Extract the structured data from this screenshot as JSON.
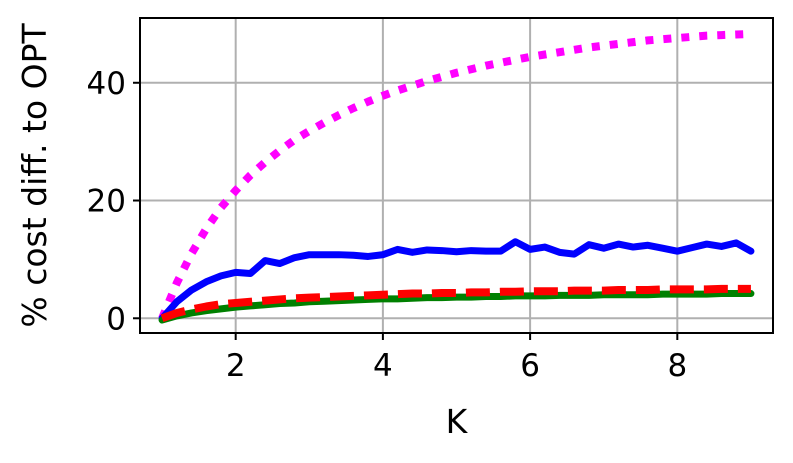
{
  "chart_data": {
    "type": "line",
    "xlabel": "K",
    "ylabel": "% cost diff. to OPT",
    "xlim": [
      0.7,
      9.3
    ],
    "ylim": [
      -2.5,
      51
    ],
    "xticks": [
      2,
      4,
      6,
      8
    ],
    "yticks": [
      0,
      20,
      40
    ],
    "xtick_labels": [
      "2",
      "4",
      "6",
      "8"
    ],
    "ytick_labels": [
      "0",
      "20",
      "40"
    ],
    "grid": true,
    "legend": "none",
    "series": [
      {
        "color": "#ff00ff",
        "style": "dotted",
        "x": [
          1.0,
          1.2,
          1.4,
          1.6,
          1.8,
          2.0,
          2.2,
          2.4,
          2.6,
          2.8,
          3.0,
          3.2,
          3.4,
          3.6,
          3.8,
          4.0,
          4.2,
          4.4,
          4.6,
          4.8,
          5.0,
          5.2,
          5.4,
          5.6,
          5.8,
          6.0,
          6.2,
          6.4,
          6.6,
          6.8,
          7.0,
          7.2,
          7.4,
          7.6,
          7.8,
          8.0,
          8.2,
          8.4,
          8.6,
          8.8,
          9.0
        ],
        "y": [
          0.0,
          6.0,
          11.0,
          15.2,
          18.8,
          21.7,
          24.3,
          26.5,
          28.5,
          30.3,
          31.8,
          33.2,
          34.5,
          35.7,
          36.8,
          37.8,
          38.7,
          39.5,
          40.3,
          41.0,
          41.7,
          42.3,
          42.9,
          43.4,
          43.9,
          44.4,
          44.8,
          45.2,
          45.6,
          46.0,
          46.3,
          46.6,
          46.9,
          47.2,
          47.4,
          47.6,
          47.8,
          48.0,
          48.1,
          48.2,
          48.3
        ]
      },
      {
        "color": "#0000ff",
        "style": "solid",
        "x": [
          1.0,
          1.2,
          1.4,
          1.6,
          1.8,
          2.0,
          2.2,
          2.4,
          2.6,
          2.8,
          3.0,
          3.2,
          3.4,
          3.6,
          3.8,
          4.0,
          4.2,
          4.4,
          4.6,
          4.8,
          5.0,
          5.2,
          5.4,
          5.6,
          5.8,
          6.0,
          6.2,
          6.4,
          6.6,
          6.8,
          7.0,
          7.2,
          7.4,
          7.6,
          7.8,
          8.0,
          8.2,
          8.4,
          8.6,
          8.8,
          9.0
        ],
        "y": [
          0.0,
          2.8,
          4.8,
          6.2,
          7.2,
          7.8,
          7.6,
          9.8,
          9.3,
          10.3,
          10.8,
          10.8,
          10.8,
          10.7,
          10.5,
          10.8,
          11.7,
          11.2,
          11.6,
          11.5,
          11.3,
          11.5,
          11.4,
          11.4,
          13.0,
          11.7,
          12.1,
          11.2,
          10.9,
          12.5,
          11.9,
          12.6,
          12.1,
          12.4,
          11.9,
          11.4,
          12.0,
          12.6,
          12.2,
          12.8,
          11.4
        ]
      },
      {
        "color": "#008000",
        "style": "solid",
        "x": [
          1.0,
          1.2,
          1.4,
          1.6,
          1.8,
          2.0,
          2.2,
          2.4,
          2.6,
          2.8,
          3.0,
          3.2,
          3.4,
          3.6,
          3.8,
          4.0,
          4.2,
          4.4,
          4.6,
          4.8,
          5.0,
          5.2,
          5.4,
          5.6,
          5.8,
          6.0,
          6.2,
          6.4,
          6.6,
          6.8,
          7.0,
          7.2,
          7.4,
          7.6,
          7.8,
          8.0,
          8.2,
          8.4,
          8.6,
          8.8,
          9.0
        ],
        "y": [
          -0.3,
          0.4,
          0.9,
          1.3,
          1.6,
          1.9,
          2.1,
          2.3,
          2.5,
          2.6,
          2.8,
          2.9,
          3.0,
          3.1,
          3.2,
          3.3,
          3.3,
          3.4,
          3.5,
          3.5,
          3.6,
          3.6,
          3.7,
          3.7,
          3.8,
          3.8,
          3.8,
          3.9,
          3.9,
          3.9,
          4.0,
          4.0,
          4.0,
          4.0,
          4.1,
          4.1,
          4.1,
          4.1,
          4.2,
          4.2,
          4.2
        ]
      },
      {
        "color": "#ff0000",
        "style": "dashed",
        "x": [
          1.0,
          1.2,
          1.4,
          1.6,
          1.8,
          2.0,
          2.2,
          2.4,
          2.6,
          2.8,
          3.0,
          3.2,
          3.4,
          3.6,
          3.8,
          4.0,
          4.2,
          4.4,
          4.6,
          4.8,
          5.0,
          5.2,
          5.4,
          5.6,
          5.8,
          6.0,
          6.2,
          6.4,
          6.6,
          6.8,
          7.0,
          7.2,
          7.4,
          7.6,
          7.8,
          8.0,
          8.2,
          8.4,
          8.6,
          8.8,
          9.0
        ],
        "y": [
          0.0,
          0.9,
          1.5,
          2.0,
          2.4,
          2.6,
          2.8,
          3.0,
          3.2,
          3.4,
          3.5,
          3.6,
          3.7,
          3.8,
          3.9,
          4.0,
          4.1,
          4.2,
          4.2,
          4.3,
          4.3,
          4.4,
          4.4,
          4.5,
          4.5,
          4.6,
          4.6,
          4.6,
          4.7,
          4.7,
          4.7,
          4.8,
          4.8,
          4.8,
          4.9,
          4.9,
          4.9,
          4.9,
          5.0,
          5.0,
          5.0
        ]
      }
    ]
  }
}
